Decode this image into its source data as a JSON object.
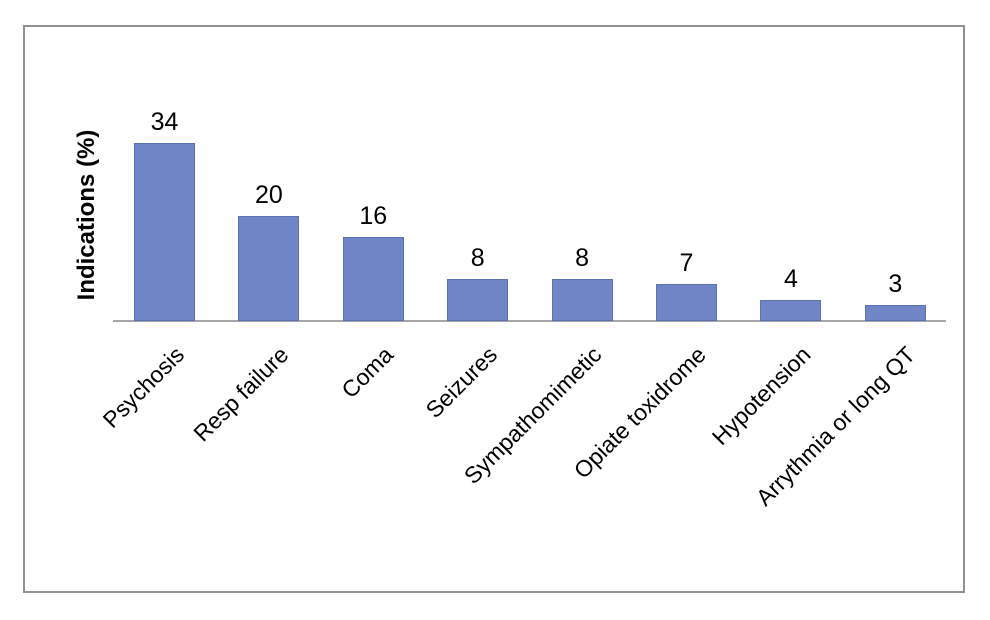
{
  "page": {
    "background_color": "#ffffff",
    "frame_border_color": "#919191"
  },
  "chart_data": {
    "type": "bar",
    "title": "",
    "xlabel": "",
    "ylabel": "Indications (%)",
    "categories": [
      "Psychosis",
      "Resp failure",
      "Coma",
      "Seizures",
      "Sympathomimetic",
      "Opiate toxidrome",
      "Hypotension",
      "Arrythmia or long QT"
    ],
    "values": [
      34,
      20,
      16,
      8,
      8,
      7,
      4,
      3
    ],
    "data_labels": [
      34,
      20,
      16,
      8,
      8,
      7,
      4,
      3
    ],
    "ylim": [
      0,
      36
    ],
    "grid": false,
    "legend": false,
    "x_tick_rotation_deg": 45,
    "bar_color": "#6F85C5",
    "bar_border_color": "#5B71B5",
    "axis_line_color": "#a6a6a6",
    "text_color": "#000000"
  }
}
